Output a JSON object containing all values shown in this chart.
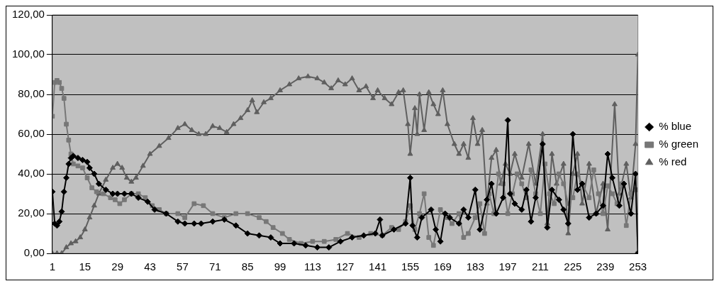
{
  "chart_data": {
    "type": "line",
    "xlim": [
      1,
      253
    ],
    "xticks": [
      1,
      15,
      29,
      43,
      57,
      71,
      85,
      99,
      113,
      127,
      141,
      155,
      169,
      183,
      197,
      211,
      225,
      239,
      253
    ],
    "ylim": [
      0,
      120
    ],
    "yticks": [
      {
        "value": 0,
        "label": "0,00"
      },
      {
        "value": 20,
        "label": "20,00"
      },
      {
        "value": 40,
        "label": "40,00"
      },
      {
        "value": 60,
        "label": "60,00"
      },
      {
        "value": 80,
        "label": "80,00"
      },
      {
        "value": 100,
        "label": "100,00"
      },
      {
        "value": 120,
        "label": "120,00"
      }
    ],
    "grid": "y",
    "legend": "right",
    "series": [
      {
        "name": "% blue",
        "color": "#000000",
        "marker": "diamond",
        "x": [
          1,
          2,
          3,
          4,
          5,
          6,
          7,
          8,
          9,
          10,
          12,
          14,
          16,
          17,
          19,
          21,
          24,
          27,
          29,
          32,
          35,
          38,
          42,
          45,
          50,
          55,
          58,
          62,
          65,
          70,
          75,
          80,
          85,
          90,
          95,
          99,
          105,
          110,
          115,
          120,
          125,
          130,
          135,
          140,
          142,
          143,
          148,
          153,
          155,
          156,
          158,
          160,
          164,
          166,
          168,
          170,
          172,
          176,
          178,
          180,
          183,
          185,
          188,
          190,
          192,
          195,
          197,
          198,
          200,
          203,
          205,
          207,
          209,
          212,
          214,
          216,
          219,
          221,
          223,
          225,
          227,
          229,
          232,
          235,
          238,
          240,
          242,
          245,
          247,
          250,
          252,
          253
        ],
        "values": [
          31,
          15,
          14,
          16,
          21,
          31,
          38,
          45,
          48,
          49,
          48,
          47,
          46,
          43,
          40,
          35,
          32,
          30,
          30,
          30,
          30,
          28,
          26,
          22,
          20,
          16,
          15,
          15,
          15,
          16,
          17,
          14,
          10,
          9,
          8,
          5,
          5,
          4,
          3,
          3,
          6,
          8,
          9,
          10,
          17,
          9,
          12,
          15,
          38,
          14,
          8,
          18,
          22,
          12,
          6,
          20,
          18,
          15,
          22,
          18,
          32,
          12,
          27,
          35,
          20,
          28,
          67,
          30,
          25,
          22,
          32,
          16,
          28,
          55,
          13,
          32,
          27,
          22,
          15,
          60,
          32,
          35,
          18,
          20,
          24,
          50,
          38,
          24,
          35,
          20,
          40,
          0
        ]
      },
      {
        "name": "% green",
        "color": "#777777",
        "marker": "square",
        "x": [
          1,
          2,
          3,
          4,
          5,
          6,
          7,
          8,
          9,
          10,
          12,
          14,
          16,
          18,
          20,
          23,
          26,
          28,
          30,
          32,
          35,
          38,
          41,
          44,
          47,
          50,
          55,
          58,
          62,
          66,
          70,
          75,
          80,
          85,
          90,
          93,
          96,
          100,
          103,
          108,
          113,
          118,
          123,
          128,
          133,
          138,
          143,
          147,
          150,
          153,
          155,
          157,
          159,
          161,
          163,
          165,
          168,
          171,
          173,
          176,
          178,
          180,
          183,
          185,
          187,
          189,
          191,
          193,
          195,
          197,
          199,
          201,
          203,
          205,
          207,
          209,
          211,
          213,
          215,
          217,
          219,
          221,
          223,
          225,
          227,
          229,
          232,
          234,
          236,
          238,
          240,
          242,
          244,
          246,
          248,
          250,
          252,
          253
        ],
        "values": [
          69,
          86,
          87,
          86,
          83,
          78,
          65,
          57,
          50,
          45,
          44,
          43,
          38,
          33,
          31,
          30,
          28,
          27,
          25,
          27,
          30,
          30,
          28,
          24,
          22,
          20,
          20,
          18,
          25,
          24,
          20,
          18,
          20,
          20,
          18,
          16,
          13,
          10,
          7,
          5,
          6,
          6,
          7,
          10,
          8,
          10,
          9,
          13,
          12,
          16,
          24,
          12,
          20,
          30,
          8,
          4,
          22,
          18,
          15,
          20,
          8,
          10,
          18,
          25,
          10,
          30,
          20,
          40,
          35,
          20,
          30,
          40,
          35,
          28,
          42,
          30,
          20,
          45,
          30,
          25,
          40,
          35,
          25,
          28,
          40,
          35,
          28,
          42,
          30,
          20,
          34,
          30,
          25,
          35,
          14,
          30,
          32,
          0
        ]
      },
      {
        "name": "% red",
        "color": "#5f5f5f",
        "marker": "triangle",
        "x": [
          1,
          3,
          5,
          7,
          9,
          11,
          13,
          15,
          17,
          19,
          21,
          24,
          27,
          29,
          31,
          33,
          35,
          37,
          40,
          43,
          47,
          51,
          55,
          58,
          61,
          64,
          67,
          70,
          73,
          76,
          79,
          82,
          85,
          87,
          89,
          92,
          95,
          99,
          103,
          107,
          111,
          115,
          118,
          121,
          124,
          127,
          130,
          133,
          136,
          139,
          141,
          144,
          147,
          150,
          152,
          154,
          155,
          157,
          158,
          159,
          161,
          163,
          165,
          167,
          169,
          171,
          174,
          176,
          178,
          180,
          182,
          184,
          186,
          188,
          190,
          192,
          194,
          196,
          198,
          200,
          203,
          206,
          209,
          212,
          214,
          216,
          218,
          221,
          223,
          225,
          227,
          229,
          232,
          235,
          238,
          240,
          243,
          245,
          248,
          250,
          252,
          253
        ],
        "values": [
          0,
          0,
          0,
          3,
          5,
          6,
          8,
          12,
          18,
          24,
          30,
          37,
          43,
          45,
          43,
          38,
          36,
          38,
          44,
          50,
          54,
          58,
          63,
          65,
          62,
          60,
          60,
          64,
          63,
          61,
          65,
          68,
          72,
          77,
          71,
          76,
          78,
          82,
          85,
          88,
          89,
          88,
          86,
          83,
          87,
          85,
          88,
          82,
          84,
          78,
          82,
          78,
          75,
          81,
          82,
          65,
          50,
          73,
          60,
          80,
          62,
          81,
          75,
          70,
          82,
          65,
          55,
          50,
          55,
          48,
          68,
          55,
          62,
          25,
          48,
          52,
          35,
          45,
          40,
          50,
          38,
          55,
          35,
          60,
          15,
          50,
          35,
          45,
          10,
          40,
          50,
          25,
          45,
          20,
          35,
          12,
          75,
          30,
          45,
          28,
          55,
          100
        ]
      }
    ]
  }
}
